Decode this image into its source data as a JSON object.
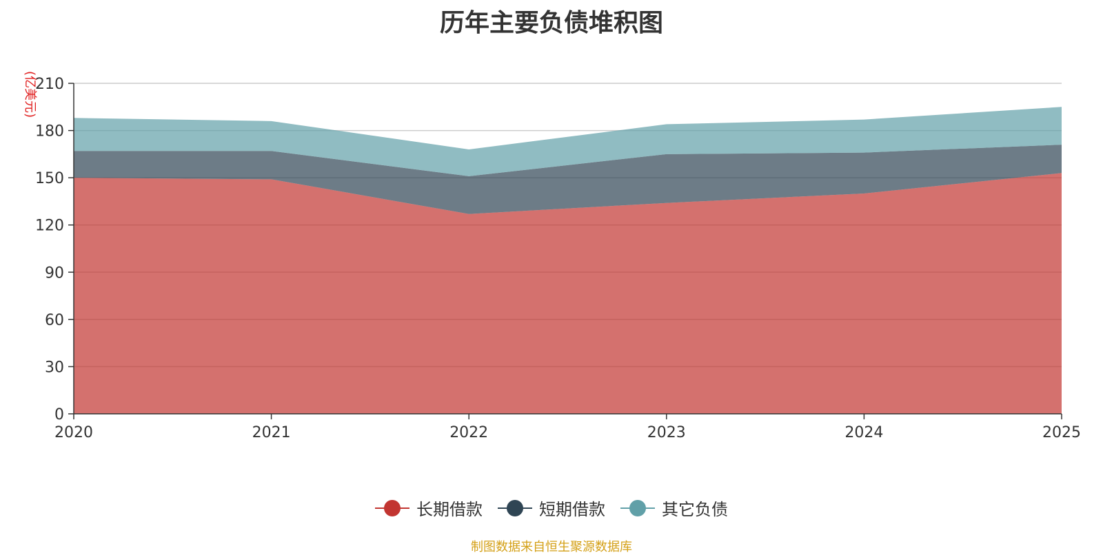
{
  "title": "历年主要负债堆积图",
  "unit_label": "(亿美元)",
  "source_note": "制图数据来自恒生聚源数据库",
  "chart_data": {
    "type": "area",
    "stacked": true,
    "title": "历年主要负债堆积图",
    "ylabel": "(亿美元)",
    "categories": [
      "2020",
      "2021",
      "2022",
      "2023",
      "2024",
      "2025"
    ],
    "ylim": [
      0,
      210
    ],
    "yticks": [
      0,
      30,
      60,
      90,
      120,
      150,
      180,
      210
    ],
    "grid": true,
    "legend_position": "bottom",
    "series": [
      {
        "name": "长期借款",
        "values": [
          150,
          149,
          127,
          134,
          140,
          153
        ],
        "color": "#c23531"
      },
      {
        "name": "短期借款",
        "values": [
          17,
          18,
          24,
          31,
          26,
          18
        ],
        "color": "#2f4554"
      },
      {
        "name": "其它负债",
        "values": [
          21,
          19,
          17,
          19,
          21,
          24
        ],
        "color": "#61a0a8"
      }
    ]
  }
}
